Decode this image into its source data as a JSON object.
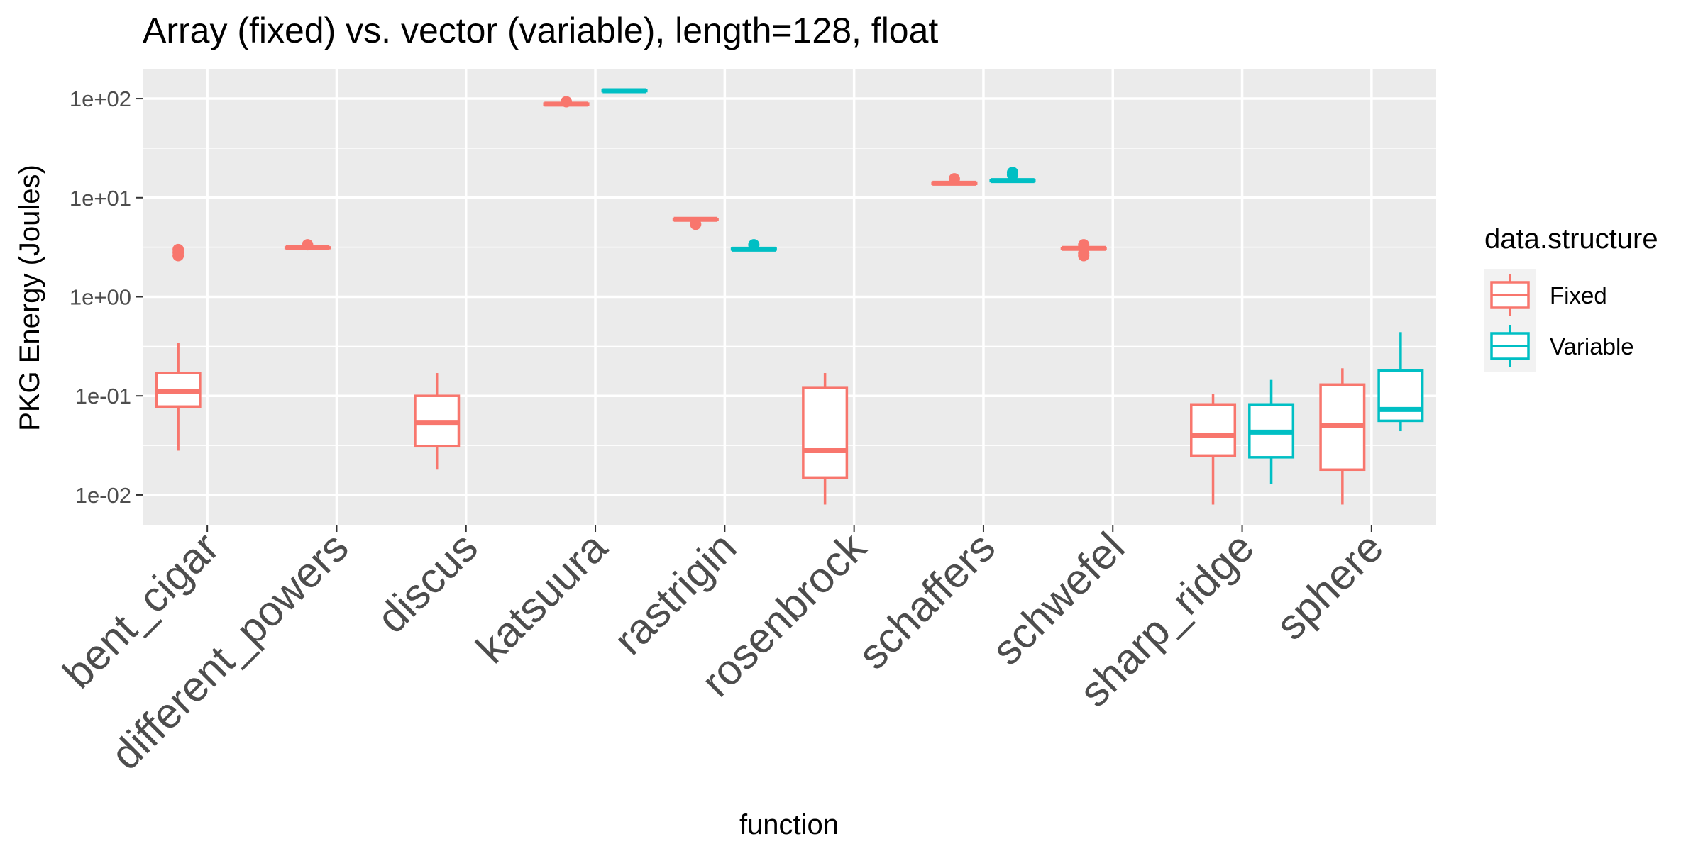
{
  "chart_data": {
    "type": "box",
    "title": "Array (fixed) vs. vector (variable), length=128, float",
    "xlabel": "function",
    "ylabel": "PKG Energy (Joules)",
    "y_scale": "log10",
    "ylim": [
      0.005,
      200
    ],
    "y_ticks": [
      0.01,
      0.1,
      1,
      10,
      100
    ],
    "y_tick_labels": [
      "1e-02",
      "1e-01",
      "1e+00",
      "1e+01",
      "1e+02"
    ],
    "grid": true,
    "categories": [
      "bent_cigar",
      "different_powers",
      "discus",
      "katsuura",
      "rastrigin",
      "rosenbrock",
      "schaffers",
      "schwefel",
      "sharp_ridge",
      "sphere"
    ],
    "legend": {
      "title": "data.structure",
      "placement": "right",
      "entries": [
        "Fixed",
        "Variable"
      ]
    },
    "colors": {
      "Fixed": "#F8766D",
      "Variable": "#00BFC4",
      "panel": "#EBEBEB",
      "grid": "#FFFFFF"
    },
    "series": [
      {
        "name": "Fixed",
        "boxes": [
          {
            "category": "bent_cigar",
            "whisker_low": 0.028,
            "q1": 0.078,
            "median": 0.11,
            "q3": 0.17,
            "whisker_high": 0.34,
            "outliers": [
              2.6,
              2.8,
              3.0
            ]
          },
          {
            "category": "different_powers",
            "whisker_low": 3.05,
            "q1": 3.1,
            "median": 3.12,
            "q3": 3.15,
            "whisker_high": 3.2,
            "outliers": [
              3.35
            ]
          },
          {
            "category": "discus",
            "whisker_low": 0.018,
            "q1": 0.031,
            "median": 0.054,
            "q3": 0.1,
            "whisker_high": 0.17,
            "outliers": []
          },
          {
            "category": "katsuura",
            "whisker_low": 86,
            "q1": 87,
            "median": 88,
            "q3": 89,
            "whisker_high": 90,
            "outliers": [
              93
            ]
          },
          {
            "category": "rastrigin",
            "whisker_low": 5.9,
            "q1": 6.0,
            "median": 6.05,
            "q3": 6.1,
            "whisker_high": 6.2,
            "outliers": [
              5.4
            ]
          },
          {
            "category": "rosenbrock",
            "whisker_low": 0.008,
            "q1": 0.015,
            "median": 0.028,
            "q3": 0.12,
            "whisker_high": 0.17,
            "outliers": []
          },
          {
            "category": "schaffers",
            "whisker_low": 13.6,
            "q1": 13.8,
            "median": 14.0,
            "q3": 14.2,
            "whisker_high": 14.4,
            "outliers": [
              15.5
            ]
          },
          {
            "category": "schwefel",
            "whisker_low": 3.0,
            "q1": 3.05,
            "median": 3.08,
            "q3": 3.1,
            "whisker_high": 3.15,
            "outliers": [
              2.6,
              2.75,
              3.35
            ]
          },
          {
            "category": "sharp_ridge",
            "whisker_low": 0.008,
            "q1": 0.025,
            "median": 0.04,
            "q3": 0.082,
            "whisker_high": 0.105,
            "outliers": []
          },
          {
            "category": "sphere",
            "whisker_low": 0.008,
            "q1": 0.018,
            "median": 0.05,
            "q3": 0.13,
            "whisker_high": 0.19,
            "outliers": []
          }
        ]
      },
      {
        "name": "Variable",
        "boxes": [
          {
            "category": "katsuura",
            "whisker_low": 118,
            "q1": 119,
            "median": 120,
            "q3": 121,
            "whisker_high": 122,
            "outliers": []
          },
          {
            "category": "rastrigin",
            "whisker_low": 2.95,
            "q1": 3.0,
            "median": 3.02,
            "q3": 3.05,
            "whisker_high": 3.1,
            "outliers": [
              3.35
            ]
          },
          {
            "category": "schaffers",
            "whisker_low": 14.5,
            "q1": 14.7,
            "median": 14.9,
            "q3": 15.1,
            "whisker_high": 15.3,
            "outliers": [
              17.0,
              18.0
            ]
          },
          {
            "category": "sharp_ridge",
            "whisker_low": 0.013,
            "q1": 0.024,
            "median": 0.043,
            "q3": 0.082,
            "whisker_high": 0.145,
            "outliers": []
          },
          {
            "category": "sphere",
            "whisker_low": 0.044,
            "q1": 0.056,
            "median": 0.073,
            "q3": 0.18,
            "whisker_high": 0.44,
            "outliers": []
          }
        ]
      }
    ]
  }
}
